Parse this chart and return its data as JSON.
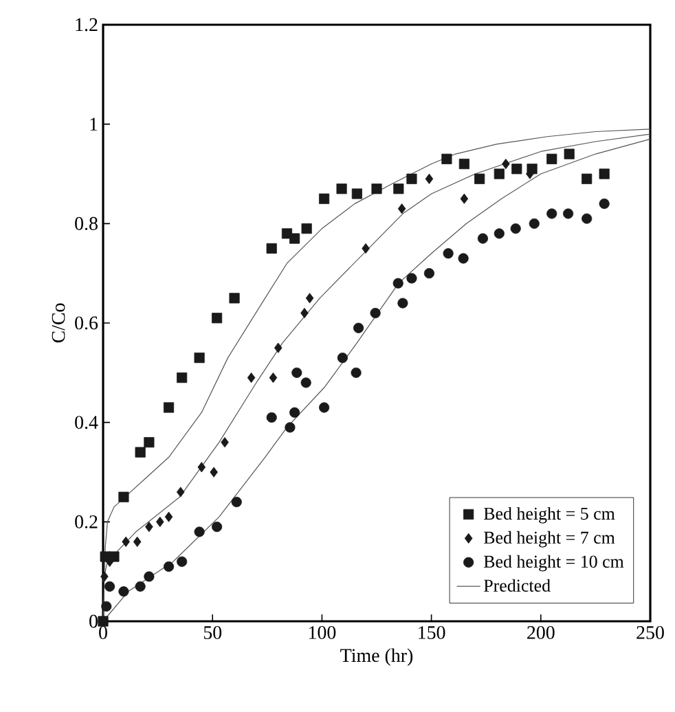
{
  "chart_data": {
    "type": "scatter",
    "xlabel": "Time (hr)",
    "ylabel": "C/Co",
    "xlim": [
      0,
      250
    ],
    "xticks": [
      0,
      50,
      100,
      150,
      200,
      250
    ],
    "ylim": [
      0,
      1.2
    ],
    "yticks": [
      0,
      0.2,
      0.4,
      0.6,
      0.8,
      1,
      1.2
    ],
    "grid": false,
    "legend": "bottom right",
    "series": [
      {
        "name": "Bed height = 5 cm",
        "color": "#1a1a1a",
        "marker": "square",
        "x": [
          0,
          1,
          5,
          9.4,
          17,
          21,
          30,
          36,
          44,
          52,
          60,
          77,
          84,
          87.5,
          93,
          101,
          109,
          116,
          125,
          135,
          141,
          157,
          165,
          172,
          181,
          189,
          196,
          205,
          213,
          221,
          229
        ],
        "values": [
          0,
          0.13,
          0.13,
          0.25,
          0.34,
          0.36,
          0.43,
          0.49,
          0.53,
          0.61,
          0.65,
          0.75,
          0.78,
          0.77,
          0.79,
          0.85,
          0.87,
          0.86,
          0.87,
          0.87,
          0.89,
          0.93,
          0.92,
          0.89,
          0.9,
          0.91,
          0.91,
          0.93,
          0.94,
          0.89,
          0.9
        ]
      },
      {
        "name": "Bed height = 7 cm",
        "color": "#1a1a1a",
        "marker": "diamond",
        "x": [
          0.6,
          3,
          10.4,
          15.6,
          21,
          26,
          30,
          35.4,
          45,
          50.6,
          55.6,
          67.7,
          77.7,
          80,
          92,
          94.4,
          120,
          136.5,
          149,
          165,
          184,
          195
        ],
        "values": [
          0.09,
          0.12,
          0.16,
          0.16,
          0.19,
          0.2,
          0.21,
          0.26,
          0.31,
          0.3,
          0.36,
          0.49,
          0.49,
          0.55,
          0.62,
          0.65,
          0.75,
          0.83,
          0.89,
          0.85,
          0.92,
          0.9
        ]
      },
      {
        "name": "Bed height = 10 cm",
        "color": "#1a1a1a",
        "marker": "circle",
        "x": [
          0,
          1.5,
          3,
          9.4,
          17,
          21,
          30,
          36,
          44,
          52,
          61,
          77,
          85.4,
          87.5,
          88.5,
          92.7,
          101,
          109.4,
          115.6,
          116.7,
          124.4,
          134.8,
          136.9,
          141,
          149,
          157.7,
          164.6,
          173.5,
          181,
          188.5,
          197,
          205,
          212.5,
          221,
          229
        ],
        "values": [
          0,
          0.03,
          0.07,
          0.06,
          0.07,
          0.09,
          0.11,
          0.12,
          0.18,
          0.19,
          0.24,
          0.41,
          0.39,
          0.42,
          0.5,
          0.48,
          0.43,
          0.53,
          0.5,
          0.59,
          0.62,
          0.68,
          0.64,
          0.69,
          0.7,
          0.74,
          0.73,
          0.77,
          0.78,
          0.79,
          0.8,
          0.82,
          0.82,
          0.81,
          0.84
        ]
      },
      {
        "name": "Predicted",
        "type": "line",
        "color": "#555555",
        "marker": "none",
        "x": [
          0,
          1,
          2,
          5,
          10,
          20,
          30,
          45,
          57,
          74,
          84,
          100,
          115,
          132,
          150,
          161,
          180,
          203,
          225,
          250
        ],
        "values": [
          0,
          0.15,
          0.2,
          0.23,
          0.25,
          0.29,
          0.33,
          0.42,
          0.53,
          0.65,
          0.72,
          0.79,
          0.84,
          0.88,
          0.92,
          0.94,
          0.96,
          0.975,
          0.985,
          0.99
        ]
      },
      {
        "type": "line",
        "color": "#555555",
        "marker": "none",
        "x": [
          0,
          2,
          15,
          35,
          53,
          70,
          82,
          99,
          128,
          137,
          150,
          170,
          200,
          225,
          250
        ],
        "values": [
          0.08,
          0.12,
          0.18,
          0.25,
          0.36,
          0.48,
          0.56,
          0.65,
          0.78,
          0.82,
          0.86,
          0.9,
          0.945,
          0.965,
          0.98
        ]
      },
      {
        "type": "line",
        "color": "#555555",
        "marker": "none",
        "x": [
          0,
          11.5,
          32,
          53,
          74,
          84,
          101,
          116,
          135,
          150,
          166,
          182,
          200,
          225,
          250
        ],
        "values": [
          0,
          0.06,
          0.12,
          0.21,
          0.33,
          0.39,
          0.47,
          0.56,
          0.68,
          0.74,
          0.8,
          0.85,
          0.9,
          0.94,
          0.97
        ]
      }
    ]
  }
}
